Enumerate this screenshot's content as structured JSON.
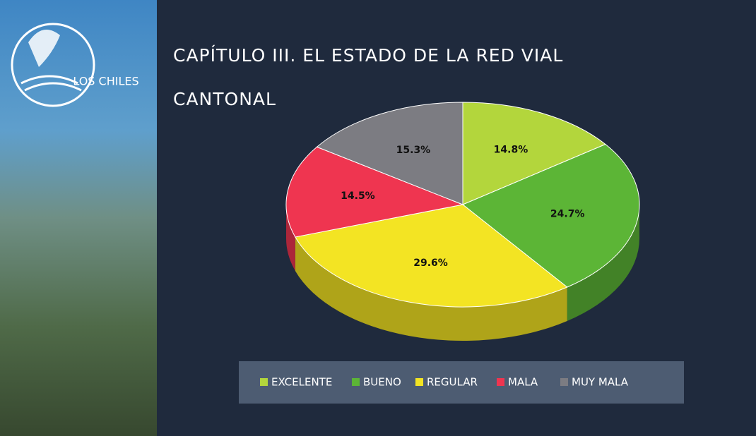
{
  "logo_text": "LOS CHILES",
  "chart_data": {
    "type": "pie3d",
    "title": "CAPÍTULO III. EL ESTADO DE LA RED VIAL CANTONAL",
    "categories": [
      "EXCELENTE",
      "BUENO",
      "REGULAR",
      "MALA",
      "MUY MALA"
    ],
    "values": [
      14.8,
      24.7,
      29.6,
      14.5,
      15.3
    ],
    "value_labels": [
      "14.8%",
      "24.7%",
      "29.6%",
      "14.5%",
      "15.3%"
    ],
    "colors": [
      "#b3d63c",
      "#5cb536",
      "#f3e423",
      "#ef3550",
      "#7c7c82"
    ],
    "legend": "bottom"
  }
}
